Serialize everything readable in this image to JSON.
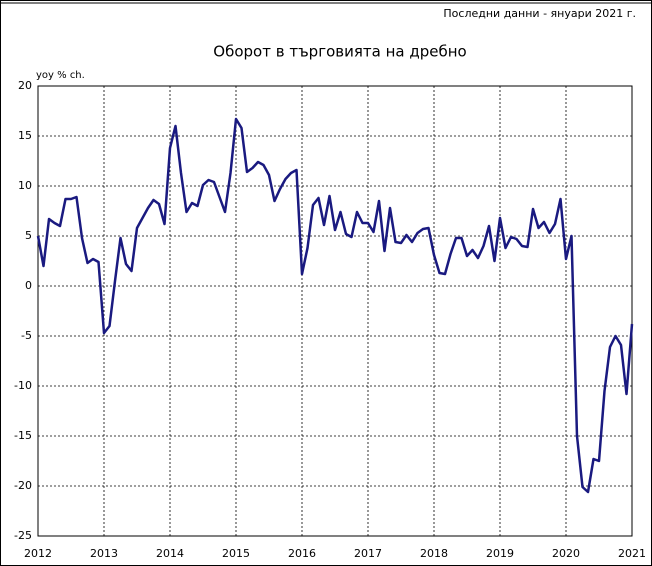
{
  "chart_data": {
    "type": "line",
    "title": "Оборот в търговията на дребно",
    "note": "Последни данни - януари 2021 г.",
    "ylabel": "yoy % ch.",
    "categories": [
      "2012",
      null,
      null,
      null,
      null,
      null,
      null,
      null,
      null,
      null,
      null,
      null,
      "2013",
      null,
      null,
      null,
      null,
      null,
      null,
      null,
      null,
      null,
      null,
      null,
      "2014",
      null,
      null,
      null,
      null,
      null,
      null,
      null,
      null,
      null,
      null,
      null,
      "2015",
      null,
      null,
      null,
      null,
      null,
      null,
      null,
      null,
      null,
      null,
      null,
      "2016",
      null,
      null,
      null,
      null,
      null,
      null,
      null,
      null,
      null,
      null,
      null,
      "2017",
      null,
      null,
      null,
      null,
      null,
      null,
      null,
      null,
      null,
      null,
      null,
      "2018",
      null,
      null,
      null,
      null,
      null,
      null,
      null,
      null,
      null,
      null,
      null,
      "2019",
      null,
      null,
      null,
      null,
      null,
      null,
      null,
      null,
      null,
      null,
      null,
      "2020",
      null,
      null,
      null,
      null,
      null,
      null,
      null,
      null,
      null,
      null,
      null,
      "2021"
    ],
    "values": [
      5,
      2,
      6.7,
      6.3,
      6,
      8.7,
      8.7,
      8.9,
      4.8,
      2.3,
      2.7,
      2.4,
      -4.7,
      -4,
      0.5,
      4.8,
      2.2,
      1.5,
      5.8,
      6.8,
      7.8,
      8.6,
      8.2,
      6.2,
      13.8,
      16,
      11.3,
      7.4,
      8.3,
      8,
      10.1,
      10.6,
      10.4,
      8.9,
      7.4,
      11.3,
      16.7,
      15.8,
      11.4,
      11.8,
      12.4,
      12.1,
      11.1,
      8.5,
      9.7,
      10.7,
      11.3,
      11.6,
      1.2,
      3.8,
      8.1,
      8.8,
      6.1,
      9,
      5.6,
      7.4,
      5.2,
      4.9,
      7.4,
      6.3,
      6.3,
      5.4,
      8.5,
      3.5,
      7.8,
      4.4,
      4.3,
      5.1,
      4.4,
      5.3,
      5.7,
      5.8,
      3.1,
      1.3,
      1.2,
      3.2,
      4.8,
      4.8,
      3,
      3.6,
      2.8,
      4,
      6,
      2.5,
      6.8,
      3.8,
      4.9,
      4.7,
      4,
      3.9,
      7.7,
      5.8,
      6.4,
      5.3,
      6.2,
      8.7,
      2.7,
      5,
      -15,
      -20.1,
      -20.6,
      -17.3,
      -17.5,
      -10.5,
      -6.1,
      -5,
      -5.9,
      -10.8,
      -3.8
    ],
    "color": "#1a1a80",
    "ylim": [
      -25,
      20
    ],
    "yticks": [
      20,
      15,
      10,
      5,
      0,
      -5,
      -10,
      -15,
      -20,
      -25
    ],
    "grid": true
  }
}
